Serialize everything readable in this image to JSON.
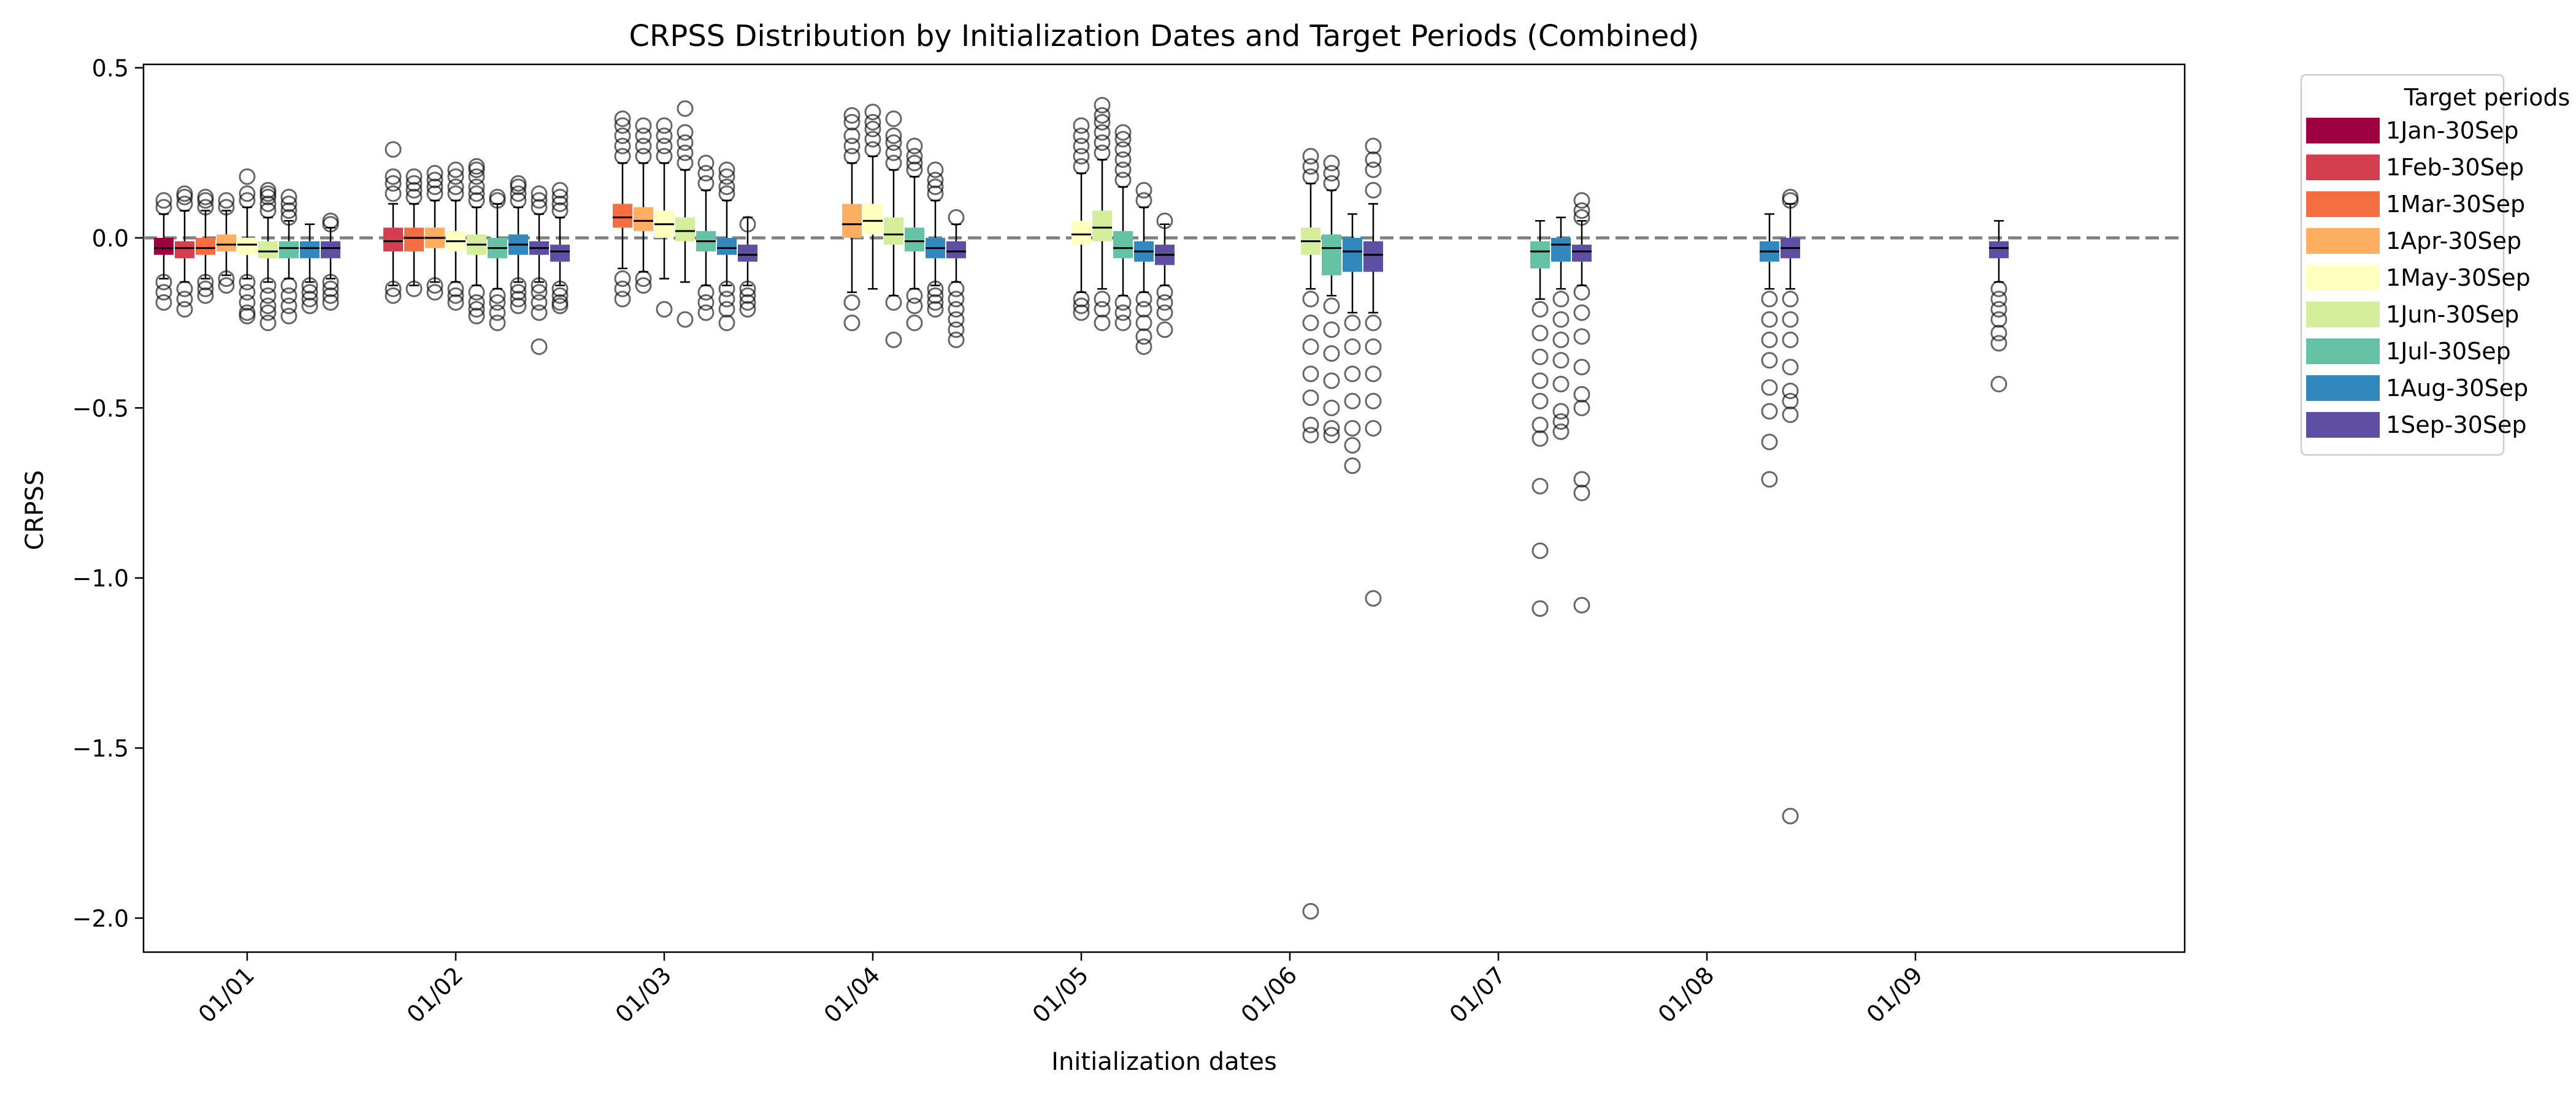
{
  "chart_data": {
    "type": "box",
    "title": "CRPSS Distribution by Initialization Dates and Target Periods (Combined)",
    "xlabel": "Initialization dates",
    "ylabel": "CRPSS",
    "ylim": [
      -2.1,
      0.51
    ],
    "yticks": [
      0.5,
      0.0,
      -0.5,
      -1.0,
      -1.5,
      -2.0
    ],
    "ytick_labels": [
      "0.5",
      "0.0",
      "−0.5",
      "−1.0",
      "−1.5",
      "−2.0"
    ],
    "categories": [
      "01/01",
      "01/02",
      "01/03",
      "01/04",
      "01/05",
      "01/06",
      "01/07",
      "01/08",
      "01/09"
    ],
    "reference_line": {
      "y": 0.0,
      "style": "dashed",
      "color": "#808080"
    },
    "legend": {
      "title": "Target periods",
      "position": "outside-right-top",
      "entries": [
        {
          "label": "1Jan-30Sep",
          "color": "#9e0142"
        },
        {
          "label": "1Feb-30Sep",
          "color": "#d53e4f"
        },
        {
          "label": "1Mar-30Sep",
          "color": "#f46d43"
        },
        {
          "label": "1Apr-30Sep",
          "color": "#fdae61"
        },
        {
          "label": "1May-30Sep",
          "color": "#ffffbf"
        },
        {
          "label": "1Jun-30Sep",
          "color": "#d5ee9b"
        },
        {
          "label": "1Jul-30Sep",
          "color": "#66c2a5"
        },
        {
          "label": "1Aug-30Sep",
          "color": "#3288bd"
        },
        {
          "label": "1Sep-30Sep",
          "color": "#5e4fa2"
        }
      ]
    },
    "groups": [
      {
        "init": "01/01",
        "boxes": [
          {
            "period": 0,
            "q1": -0.05,
            "median": -0.03,
            "q3": 0.0,
            "whislo": -0.12,
            "whishi": 0.07,
            "fliers": [
              0.09,
              0.11,
              -0.13,
              -0.16,
              -0.19
            ]
          },
          {
            "period": 1,
            "q1": -0.06,
            "median": -0.03,
            "q3": -0.01,
            "whislo": -0.13,
            "whishi": 0.08,
            "fliers": [
              0.1,
              0.12,
              0.13,
              -0.15,
              -0.18,
              -0.21
            ]
          },
          {
            "period": 2,
            "q1": -0.05,
            "median": -0.03,
            "q3": 0.0,
            "whislo": -0.12,
            "whishi": 0.08,
            "fliers": [
              0.09,
              0.11,
              0.12,
              -0.13,
              -0.15,
              -0.17
            ]
          },
          {
            "period": 3,
            "q1": -0.04,
            "median": -0.02,
            "q3": 0.01,
            "whislo": -0.11,
            "whishi": 0.08,
            "fliers": [
              0.09,
              0.11,
              -0.12,
              -0.14
            ]
          },
          {
            "period": 4,
            "q1": -0.05,
            "median": -0.02,
            "q3": 0.0,
            "whislo": -0.12,
            "whishi": 0.09,
            "fliers": [
              0.11,
              0.13,
              0.18,
              -0.13,
              -0.16,
              -0.19,
              -0.22,
              -0.23
            ]
          },
          {
            "period": 5,
            "q1": -0.06,
            "median": -0.04,
            "q3": -0.01,
            "whislo": -0.13,
            "whishi": 0.06,
            "fliers": [
              0.08,
              0.1,
              0.12,
              0.13,
              0.14,
              -0.14,
              -0.17,
              -0.2,
              -0.22,
              -0.25
            ]
          },
          {
            "period": 6,
            "q1": -0.06,
            "median": -0.03,
            "q3": -0.01,
            "whislo": -0.12,
            "whishi": 0.05,
            "fliers": [
              0.06,
              0.08,
              0.1,
              0.12,
              -0.14,
              -0.17,
              -0.2,
              -0.23
            ]
          },
          {
            "period": 7,
            "q1": -0.06,
            "median": -0.03,
            "q3": -0.01,
            "whislo": -0.13,
            "whishi": 0.04,
            "fliers": [
              -0.14,
              -0.16,
              -0.18,
              -0.2
            ]
          },
          {
            "period": 8,
            "q1": -0.06,
            "median": -0.03,
            "q3": -0.01,
            "whislo": -0.12,
            "whishi": 0.03,
            "fliers": [
              0.04,
              0.05,
              -0.13,
              -0.15,
              -0.17,
              -0.19
            ]
          }
        ]
      },
      {
        "init": "01/02",
        "boxes": [
          {
            "period": 1,
            "q1": -0.04,
            "median": -0.01,
            "q3": 0.03,
            "whislo": -0.14,
            "whishi": 0.1,
            "fliers": [
              0.13,
              0.16,
              0.18,
              0.26,
              -0.15,
              -0.17
            ]
          },
          {
            "period": 2,
            "q1": -0.04,
            "median": 0.0,
            "q3": 0.03,
            "whislo": -0.14,
            "whishi": 0.1,
            "fliers": [
              0.12,
              0.14,
              0.16,
              0.18,
              -0.15
            ]
          },
          {
            "period": 3,
            "q1": -0.03,
            "median": 0.0,
            "q3": 0.03,
            "whislo": -0.13,
            "whishi": 0.11,
            "fliers": [
              0.13,
              0.15,
              0.17,
              0.19,
              -0.14,
              -0.16
            ]
          },
          {
            "period": 4,
            "q1": -0.04,
            "median": -0.01,
            "q3": 0.02,
            "whislo": -0.13,
            "whishi": 0.11,
            "fliers": [
              0.13,
              0.15,
              0.18,
              0.2,
              -0.15,
              -0.17,
              -0.19
            ]
          },
          {
            "period": 5,
            "q1": -0.05,
            "median": -0.02,
            "q3": 0.01,
            "whislo": -0.14,
            "whishi": 0.09,
            "fliers": [
              0.11,
              0.13,
              0.15,
              0.18,
              0.2,
              0.21,
              -0.16,
              -0.19,
              -0.21,
              -0.23
            ]
          },
          {
            "period": 6,
            "q1": -0.06,
            "median": -0.03,
            "q3": 0.0,
            "whislo": -0.15,
            "whishi": 0.1,
            "fliers": [
              0.11,
              0.12,
              -0.17,
              -0.19,
              -0.22,
              -0.25
            ]
          },
          {
            "period": 7,
            "q1": -0.05,
            "median": -0.02,
            "q3": 0.01,
            "whislo": -0.13,
            "whishi": 0.09,
            "fliers": [
              0.11,
              0.13,
              0.15,
              0.16,
              -0.14,
              -0.16,
              -0.18,
              -0.2
            ]
          },
          {
            "period": 8,
            "q1": -0.05,
            "median": -0.03,
            "q3": -0.01,
            "whislo": -0.13,
            "whishi": 0.07,
            "fliers": [
              0.09,
              0.11,
              0.13,
              -0.14,
              -0.16,
              -0.19,
              -0.22,
              -0.32
            ]
          },
          {
            "period": 9,
            "q1": -0.07,
            "median": -0.04,
            "q3": -0.02,
            "whislo": -0.14,
            "whishi": 0.06,
            "fliers": [
              0.08,
              0.1,
              0.12,
              0.14,
              -0.15,
              -0.17,
              -0.19,
              -0.2
            ]
          }
        ]
      },
      {
        "init": "01/03",
        "boxes": [
          {
            "period": 2,
            "q1": 0.03,
            "median": 0.06,
            "q3": 0.1,
            "whislo": -0.09,
            "whishi": 0.22,
            "fliers": [
              0.24,
              0.27,
              0.3,
              0.33,
              0.35,
              -0.12,
              -0.15,
              -0.18
            ]
          },
          {
            "period": 3,
            "q1": 0.02,
            "median": 0.05,
            "q3": 0.09,
            "whislo": -0.1,
            "whishi": 0.22,
            "fliers": [
              0.24,
              0.27,
              0.3,
              0.33,
              -0.12,
              -0.14
            ]
          },
          {
            "period": 4,
            "q1": 0.0,
            "median": 0.04,
            "q3": 0.08,
            "whislo": -0.12,
            "whishi": 0.22,
            "fliers": [
              0.24,
              0.27,
              0.3,
              0.33,
              -0.21
            ]
          },
          {
            "period": 5,
            "q1": -0.01,
            "median": 0.02,
            "q3": 0.06,
            "whislo": -0.13,
            "whishi": 0.2,
            "fliers": [
              0.22,
              0.25,
              0.28,
              0.31,
              0.38,
              -0.24
            ]
          },
          {
            "period": 6,
            "q1": -0.04,
            "median": -0.01,
            "q3": 0.02,
            "whislo": -0.14,
            "whishi": 0.14,
            "fliers": [
              0.16,
              0.19,
              0.22,
              -0.16,
              -0.19,
              -0.22
            ]
          },
          {
            "period": 7,
            "q1": -0.05,
            "median": -0.03,
            "q3": 0.0,
            "whislo": -0.14,
            "whishi": 0.11,
            "fliers": [
              0.13,
              0.15,
              0.18,
              0.2,
              -0.15,
              -0.18,
              -0.21,
              -0.25
            ]
          },
          {
            "period": 8,
            "q1": -0.07,
            "median": -0.05,
            "q3": -0.02,
            "whislo": -0.14,
            "whishi": 0.06,
            "fliers": [
              0.04,
              -0.15,
              -0.17,
              -0.19,
              -0.21
            ]
          }
        ]
      },
      {
        "init": "01/04",
        "boxes": [
          {
            "period": 3,
            "q1": 0.0,
            "median": 0.04,
            "q3": 0.1,
            "whislo": -0.16,
            "whishi": 0.22,
            "fliers": [
              0.24,
              0.27,
              0.3,
              0.34,
              0.36,
              -0.19,
              -0.25
            ]
          },
          {
            "period": 4,
            "q1": 0.01,
            "median": 0.05,
            "q3": 0.1,
            "whislo": -0.15,
            "whishi": 0.24,
            "fliers": [
              0.26,
              0.29,
              0.32,
              0.34,
              0.37
            ]
          },
          {
            "period": 5,
            "q1": -0.02,
            "median": 0.01,
            "q3": 0.06,
            "whislo": -0.17,
            "whishi": 0.2,
            "fliers": [
              0.22,
              0.25,
              0.28,
              0.3,
              0.35,
              -0.19,
              -0.3
            ]
          },
          {
            "period": 6,
            "q1": -0.04,
            "median": -0.01,
            "q3": 0.03,
            "whislo": -0.15,
            "whishi": 0.18,
            "fliers": [
              0.2,
              0.22,
              0.24,
              0.27,
              -0.17,
              -0.2,
              -0.25
            ]
          },
          {
            "period": 7,
            "q1": -0.06,
            "median": -0.03,
            "q3": 0.0,
            "whislo": -0.14,
            "whishi": 0.11,
            "fliers": [
              0.13,
              0.15,
              0.17,
              0.2,
              -0.15,
              -0.17,
              -0.19,
              -0.21
            ]
          },
          {
            "period": 8,
            "q1": -0.06,
            "median": -0.04,
            "q3": -0.01,
            "whislo": -0.13,
            "whishi": 0.04,
            "fliers": [
              0.06,
              -0.15,
              -0.18,
              -0.21,
              -0.24,
              -0.27,
              -0.3
            ]
          }
        ]
      },
      {
        "init": "01/05",
        "boxes": [
          {
            "period": 4,
            "q1": -0.02,
            "median": 0.01,
            "q3": 0.05,
            "whislo": -0.16,
            "whishi": 0.19,
            "fliers": [
              0.21,
              0.24,
              0.27,
              0.3,
              0.33,
              -0.18,
              -0.2,
              -0.22
            ]
          },
          {
            "period": 5,
            "q1": -0.01,
            "median": 0.03,
            "q3": 0.08,
            "whislo": -0.15,
            "whishi": 0.23,
            "fliers": [
              0.25,
              0.28,
              0.31,
              0.34,
              0.36,
              0.39,
              -0.18,
              -0.21,
              -0.25
            ]
          },
          {
            "period": 6,
            "q1": -0.06,
            "median": -0.03,
            "q3": 0.02,
            "whislo": -0.17,
            "whishi": 0.15,
            "fliers": [
              0.17,
              0.2,
              0.23,
              0.26,
              0.29,
              0.31,
              -0.19,
              -0.22,
              -0.25
            ]
          },
          {
            "period": 7,
            "q1": -0.07,
            "median": -0.04,
            "q3": -0.01,
            "whislo": -0.16,
            "whishi": 0.09,
            "fliers": [
              0.11,
              0.14,
              -0.18,
              -0.21,
              -0.25,
              -0.29,
              -0.32
            ]
          },
          {
            "period": 8,
            "q1": -0.08,
            "median": -0.05,
            "q3": -0.02,
            "whislo": -0.14,
            "whishi": 0.04,
            "fliers": [
              0.05,
              -0.16,
              -0.19,
              -0.22,
              -0.27
            ]
          }
        ]
      },
      {
        "init": "01/06",
        "boxes": [
          {
            "period": 5,
            "q1": -0.05,
            "median": -0.01,
            "q3": 0.03,
            "whislo": -0.15,
            "whishi": 0.16,
            "fliers": [
              0.18,
              0.21,
              0.24,
              -0.18,
              -0.25,
              -0.32,
              -0.4,
              -0.47,
              -0.55,
              -0.58,
              -1.98
            ]
          },
          {
            "period": 6,
            "q1": -0.11,
            "median": -0.03,
            "q3": 0.01,
            "whislo": -0.17,
            "whishi": 0.14,
            "fliers": [
              0.16,
              0.19,
              0.22,
              -0.2,
              -0.27,
              -0.34,
              -0.42,
              -0.5,
              -0.56,
              -0.58
            ]
          },
          {
            "period": 7,
            "q1": -0.1,
            "median": -0.04,
            "q3": 0.0,
            "whislo": -0.22,
            "whishi": 0.07,
            "fliers": [
              -0.25,
              -0.32,
              -0.4,
              -0.48,
              -0.56,
              -0.61,
              -0.67
            ]
          },
          {
            "period": 8,
            "q1": -0.1,
            "median": -0.05,
            "q3": -0.01,
            "whislo": -0.22,
            "whishi": 0.1,
            "fliers": [
              0.14,
              0.2,
              0.23,
              0.27,
              -0.25,
              -0.32,
              -0.4,
              -0.48,
              -0.56,
              -1.06
            ]
          }
        ]
      },
      {
        "init": "01/07",
        "boxes": [
          {
            "period": 6,
            "q1": -0.09,
            "median": -0.04,
            "q3": -0.01,
            "whislo": -0.18,
            "whishi": 0.05,
            "fliers": [
              -0.21,
              -0.28,
              -0.35,
              -0.42,
              -0.48,
              -0.55,
              -0.59,
              -0.73,
              -0.92,
              -1.09
            ]
          },
          {
            "period": 7,
            "q1": -0.07,
            "median": -0.02,
            "q3": 0.0,
            "whislo": -0.15,
            "whishi": 0.06,
            "fliers": [
              -0.18,
              -0.24,
              -0.3,
              -0.36,
              -0.43,
              -0.51,
              -0.54,
              -0.57
            ]
          },
          {
            "period": 8,
            "q1": -0.07,
            "median": -0.04,
            "q3": -0.02,
            "whislo": -0.14,
            "whishi": 0.05,
            "fliers": [
              0.06,
              0.08,
              0.11,
              -0.16,
              -0.22,
              -0.29,
              -0.38,
              -0.46,
              -0.5,
              -0.71,
              -0.75,
              -1.08
            ]
          }
        ]
      },
      {
        "init": "01/08",
        "boxes": [
          {
            "period": 7,
            "q1": -0.07,
            "median": -0.04,
            "q3": -0.01,
            "whislo": -0.15,
            "whishi": 0.07,
            "fliers": [
              -0.18,
              -0.24,
              -0.3,
              -0.36,
              -0.44,
              -0.51,
              -0.6,
              -0.71
            ]
          },
          {
            "period": 8,
            "q1": -0.06,
            "median": -0.03,
            "q3": 0.0,
            "whislo": -0.15,
            "whishi": 0.1,
            "fliers": [
              0.11,
              0.12,
              -0.18,
              -0.24,
              -0.3,
              -0.38,
              -0.45,
              -0.48,
              -0.52,
              -1.7
            ]
          }
        ]
      },
      {
        "init": "01/09",
        "boxes": [
          {
            "period": 8,
            "q1": -0.06,
            "median": -0.03,
            "q3": -0.01,
            "whislo": -0.13,
            "whishi": 0.05,
            "fliers": [
              -0.15,
              -0.18,
              -0.21,
              -0.24,
              -0.28,
              -0.31,
              -0.43
            ]
          }
        ]
      }
    ]
  }
}
